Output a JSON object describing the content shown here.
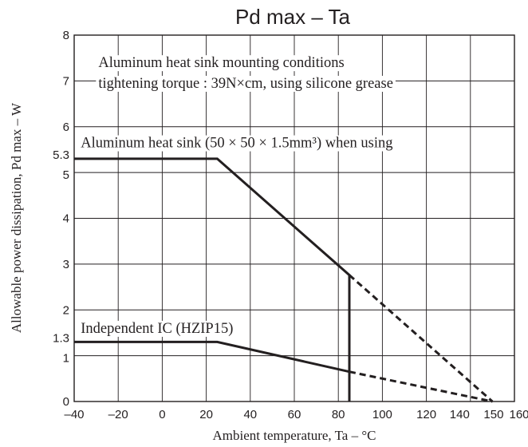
{
  "chart_data": {
    "type": "line",
    "title": "Pd max  –  Ta",
    "xlabel": "Ambient temperature, Ta  –  °C",
    "ylabel": "Allowable power dissipation, Pd max – W",
    "xlim": [
      -40,
      160
    ],
    "ylim": [
      0,
      8
    ],
    "x_ticks": [
      -40,
      -20,
      0,
      20,
      40,
      60,
      80,
      100,
      120,
      140,
      150,
      160
    ],
    "x_tick_labels": [
      "–40",
      "–20",
      "0",
      "20",
      "40",
      "60",
      "80",
      "100",
      "120",
      "140",
      "150",
      "160"
    ],
    "y_ticks": [
      0,
      1,
      1.3,
      2,
      3,
      4,
      5,
      5.3,
      6,
      7,
      8
    ],
    "y_tick_labels": [
      "0",
      "1",
      "1.3",
      "2",
      "3",
      "4",
      "5",
      "5.3",
      "6",
      "7",
      "8"
    ],
    "x_grid": [
      -20,
      0,
      20,
      40,
      60,
      80,
      100,
      120,
      140
    ],
    "y_grid": [
      1,
      2,
      3,
      4,
      5,
      6,
      7
    ],
    "grid": true,
    "series": [
      {
        "style": "solid",
        "points": [
          [
            -40,
            5.3
          ],
          [
            25,
            5.3
          ],
          [
            85,
            2.76
          ],
          [
            85,
            0
          ]
        ]
      },
      {
        "style": "dashed",
        "points": [
          [
            85,
            2.76
          ],
          [
            150,
            0
          ]
        ]
      },
      {
        "style": "solid",
        "points": [
          [
            -40,
            1.3
          ],
          [
            25,
            1.3
          ],
          [
            85,
            0.65
          ]
        ]
      },
      {
        "style": "dashed",
        "points": [
          [
            85,
            0.65
          ],
          [
            150,
            0
          ]
        ]
      }
    ],
    "annotations": [
      {
        "text": "Aluminum heat sink mounting conditions",
        "x": -29,
        "y": 7.3
      },
      {
        "text": "tightening torque : 39N×cm, using silicone grease",
        "x": -29,
        "y": 6.85
      },
      {
        "text": "Aluminum heat sink (50 × 50 × 1.5mm³) when using",
        "x": -37,
        "y": 5.55
      },
      {
        "text": "Independent IC (HZIP15)",
        "x": -37,
        "y": 1.5
      }
    ]
  }
}
